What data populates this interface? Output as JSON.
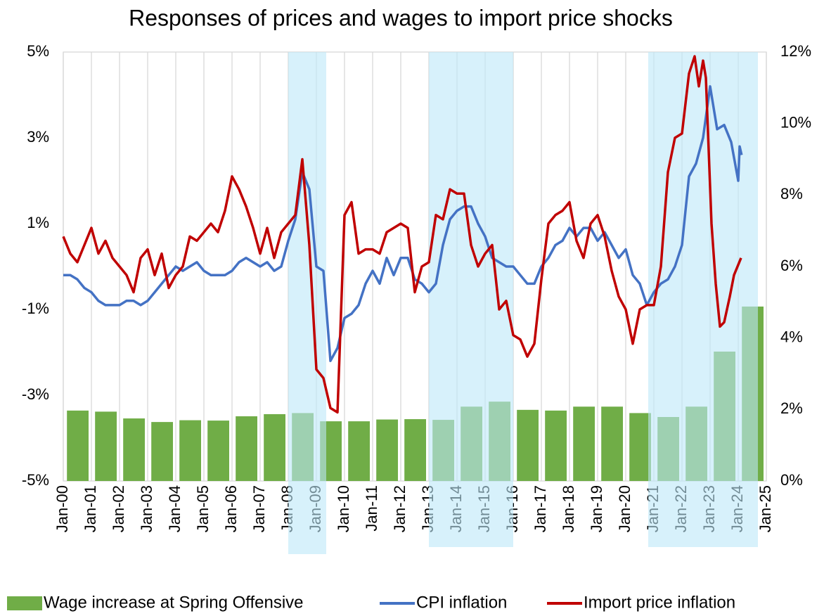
{
  "chart_data": {
    "type": "combo",
    "title": "Responses of prices and wages to import price shocks",
    "xlim": [
      2000,
      2025
    ],
    "xticks": [
      {
        "value": 2000,
        "label": "Jan-00"
      },
      {
        "value": 2001,
        "label": "Jan-01"
      },
      {
        "value": 2002,
        "label": "Jan-02"
      },
      {
        "value": 2003,
        "label": "Jan-03"
      },
      {
        "value": 2004,
        "label": "Jan-04"
      },
      {
        "value": 2005,
        "label": "Jan-05"
      },
      {
        "value": 2006,
        "label": "Jan-06"
      },
      {
        "value": 2007,
        "label": "Jan-07"
      },
      {
        "value": 2008,
        "label": "Jan-08"
      },
      {
        "value": 2009,
        "label": "Jan-09"
      },
      {
        "value": 2010,
        "label": "Jan-10"
      },
      {
        "value": 2011,
        "label": "Jan-11"
      },
      {
        "value": 2012,
        "label": "Jan-12"
      },
      {
        "value": 2013,
        "label": "Jan-13"
      },
      {
        "value": 2014,
        "label": "Jan-14"
      },
      {
        "value": 2015,
        "label": "Jan-15"
      },
      {
        "value": 2016,
        "label": "Jan-16"
      },
      {
        "value": 2017,
        "label": "Jan-17"
      },
      {
        "value": 2018,
        "label": "Jan-18"
      },
      {
        "value": 2019,
        "label": "Jan-19"
      },
      {
        "value": 2020,
        "label": "Jan-20"
      },
      {
        "value": 2021,
        "label": "Jan-21"
      },
      {
        "value": 2022,
        "label": "Jan-22"
      },
      {
        "value": 2023,
        "label": "Jan-23"
      },
      {
        "value": 2024,
        "label": "Jan-24"
      },
      {
        "value": 2025,
        "label": "Jan-25"
      }
    ],
    "ylim": [
      -5,
      5
    ],
    "yticks": [
      {
        "value": -5,
        "label": "-5%"
      },
      {
        "value": -3,
        "label": "-3%"
      },
      {
        "value": -1,
        "label": "-1%"
      },
      {
        "value": 1,
        "label": "1%"
      },
      {
        "value": 3,
        "label": "3%"
      },
      {
        "value": 5,
        "label": "5%"
      }
    ],
    "y2lim": [
      0,
      12
    ],
    "y2ticks": [
      {
        "value": 0,
        "label": "0%"
      },
      {
        "value": 2,
        "label": "2%"
      },
      {
        "value": 4,
        "label": "4%"
      },
      {
        "value": 6,
        "label": "6%"
      },
      {
        "value": 8,
        "label": "8%"
      },
      {
        "value": 10,
        "label": "10%"
      },
      {
        "value": 12,
        "label": "12%"
      }
    ],
    "grid": "x",
    "legend": "bottom",
    "shaded_periods": [
      [
        2008,
        2009.35
      ],
      [
        2013,
        2016
      ],
      [
        2020.8,
        2024.7
      ]
    ],
    "shade_color": "#bde7f8",
    "series": [
      {
        "name": "Wage increase at Spring Offensive",
        "type": "bar",
        "axis": "y2",
        "color": "#70ad47",
        "x": [
          2000,
          2001,
          2002,
          2003,
          2004,
          2005,
          2006,
          2007,
          2008,
          2009,
          2010,
          2011,
          2012,
          2013,
          2014,
          2015,
          2016,
          2017,
          2018,
          2019,
          2020,
          2021,
          2022,
          2023,
          2024
        ],
        "values": [
          1.97,
          1.94,
          1.75,
          1.65,
          1.7,
          1.69,
          1.81,
          1.87,
          1.9,
          1.67,
          1.67,
          1.72,
          1.73,
          1.71,
          2.08,
          2.22,
          1.99,
          1.97,
          2.08,
          2.08,
          1.9,
          1.79,
          2.08,
          3.62,
          4.88
        ]
      },
      {
        "name": "CPI inflation",
        "type": "line",
        "color": "#4472c4",
        "x": [
          2000,
          2000.25,
          2000.5,
          2000.75,
          2001,
          2001.25,
          2001.5,
          2001.75,
          2002,
          2002.25,
          2002.5,
          2002.75,
          2003,
          2003.25,
          2003.5,
          2003.75,
          2004,
          2004.25,
          2004.5,
          2004.75,
          2005,
          2005.25,
          2005.5,
          2005.75,
          2006,
          2006.25,
          2006.5,
          2006.75,
          2007,
          2007.25,
          2007.5,
          2007.75,
          2008,
          2008.25,
          2008.5,
          2008.75,
          2009,
          2009.25,
          2009.5,
          2009.75,
          2010,
          2010.25,
          2010.5,
          2010.75,
          2011,
          2011.25,
          2011.5,
          2011.75,
          2012,
          2012.25,
          2012.5,
          2012.75,
          2013,
          2013.25,
          2013.5,
          2013.75,
          2014,
          2014.25,
          2014.5,
          2014.75,
          2015,
          2015.25,
          2015.5,
          2015.75,
          2016,
          2016.25,
          2016.5,
          2016.75,
          2017,
          2017.25,
          2017.5,
          2017.75,
          2018,
          2018.25,
          2018.5,
          2018.75,
          2019,
          2019.25,
          2019.5,
          2019.75,
          2020,
          2020.25,
          2020.5,
          2020.75,
          2021,
          2021.25,
          2021.5,
          2021.75,
          2022,
          2022.25,
          2022.5,
          2022.75,
          2023,
          2023.25,
          2023.5,
          2023.75,
          2024,
          2024.05,
          2024.12
        ],
        "values": [
          -0.2,
          -0.2,
          -0.3,
          -0.5,
          -0.6,
          -0.8,
          -0.9,
          -0.9,
          -0.9,
          -0.8,
          -0.8,
          -0.9,
          -0.8,
          -0.6,
          -0.4,
          -0.2,
          0.0,
          -0.1,
          0.0,
          0.1,
          -0.1,
          -0.2,
          -0.2,
          -0.2,
          -0.1,
          0.1,
          0.2,
          0.1,
          0.0,
          0.1,
          -0.1,
          0.0,
          0.6,
          1.1,
          2.2,
          1.8,
          0.0,
          -0.1,
          -2.2,
          -1.9,
          -1.2,
          -1.1,
          -0.9,
          -0.4,
          -0.1,
          -0.4,
          0.2,
          -0.2,
          0.2,
          0.2,
          -0.3,
          -0.4,
          -0.6,
          -0.4,
          0.5,
          1.1,
          1.3,
          1.4,
          1.4,
          1.0,
          0.7,
          0.2,
          0.1,
          0.0,
          0.0,
          -0.2,
          -0.4,
          -0.4,
          0.0,
          0.2,
          0.5,
          0.6,
          0.9,
          0.7,
          0.9,
          0.9,
          0.6,
          0.8,
          0.5,
          0.2,
          0.4,
          -0.2,
          -0.4,
          -0.9,
          -0.6,
          -0.4,
          -0.3,
          0.0,
          0.5,
          2.1,
          2.4,
          3.0,
          4.2,
          3.2,
          3.3,
          2.9,
          2.0,
          2.8,
          2.6
        ]
      },
      {
        "name": "Import price inflation",
        "type": "line",
        "color": "#c00000",
        "x": [
          2000,
          2000.25,
          2000.5,
          2000.75,
          2001,
          2001.25,
          2001.5,
          2001.75,
          2002,
          2002.25,
          2002.5,
          2002.75,
          2003,
          2003.25,
          2003.5,
          2003.75,
          2004,
          2004.25,
          2004.5,
          2004.75,
          2005,
          2005.25,
          2005.5,
          2005.75,
          2006,
          2006.25,
          2006.5,
          2006.75,
          2007,
          2007.25,
          2007.5,
          2007.75,
          2008,
          2008.25,
          2008.5,
          2008.75,
          2009,
          2009.25,
          2009.5,
          2009.75,
          2010,
          2010.25,
          2010.5,
          2010.75,
          2011,
          2011.25,
          2011.5,
          2011.75,
          2012,
          2012.25,
          2012.5,
          2012.75,
          2013,
          2013.25,
          2013.5,
          2013.75,
          2014,
          2014.25,
          2014.5,
          2014.75,
          2015,
          2015.25,
          2015.5,
          2015.75,
          2016,
          2016.25,
          2016.5,
          2016.75,
          2017,
          2017.25,
          2017.5,
          2017.75,
          2018,
          2018.25,
          2018.5,
          2018.75,
          2019,
          2019.25,
          2019.5,
          2019.75,
          2020,
          2020.25,
          2020.5,
          2020.75,
          2021,
          2021.25,
          2021.5,
          2021.75,
          2022,
          2022.25,
          2022.45,
          2022.6,
          2022.75,
          2022.85,
          2023.05,
          2023.2,
          2023.35,
          2023.5,
          2023.7,
          2023.85,
          2024.1
        ],
        "values": [
          0.7,
          0.3,
          0.1,
          0.5,
          0.9,
          0.3,
          0.6,
          0.2,
          0.0,
          -0.2,
          -0.6,
          0.2,
          0.4,
          -0.2,
          0.3,
          -0.5,
          -0.2,
          0.0,
          0.7,
          0.6,
          0.8,
          1.0,
          0.8,
          1.3,
          2.1,
          1.8,
          1.4,
          0.9,
          0.3,
          0.9,
          0.2,
          0.8,
          1.0,
          1.2,
          2.5,
          0.5,
          -2.4,
          -2.6,
          -3.3,
          -3.4,
          1.2,
          1.5,
          0.3,
          0.4,
          0.4,
          0.3,
          0.8,
          0.9,
          1.0,
          0.9,
          -0.6,
          0.0,
          0.1,
          1.2,
          1.1,
          1.8,
          1.7,
          1.7,
          0.5,
          0.0,
          0.3,
          0.5,
          -1.0,
          -0.8,
          -1.6,
          -1.7,
          -2.1,
          -1.8,
          -0.3,
          1.0,
          1.2,
          1.3,
          1.5,
          0.6,
          0.2,
          1.0,
          1.2,
          0.7,
          -0.1,
          -0.7,
          -1.0,
          -1.8,
          -1.0,
          -0.9,
          -0.9,
          0.0,
          2.2,
          3.0,
          3.1,
          4.5,
          4.9,
          4.2,
          4.8,
          4.4,
          1.0,
          -0.4,
          -1.4,
          -1.3,
          -0.7,
          -0.2,
          0.2
        ]
      }
    ]
  }
}
